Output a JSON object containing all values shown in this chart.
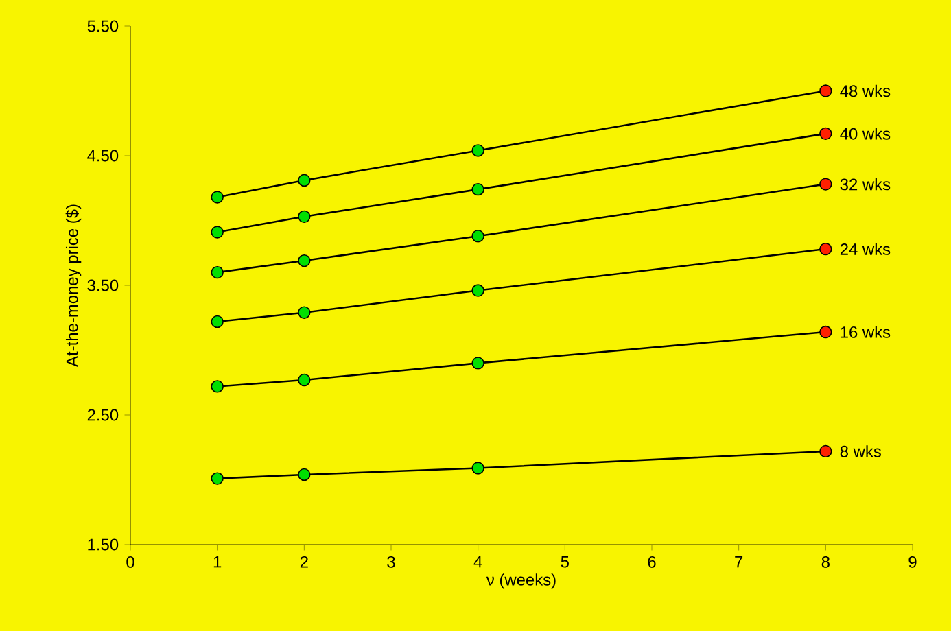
{
  "chart_data": {
    "type": "line",
    "xlabel": "ν (weeks)",
    "ylabel": "At-the-money price ($)",
    "xlim": [
      0,
      9
    ],
    "xticks": [
      0,
      1,
      2,
      3,
      4,
      5,
      6,
      7,
      8,
      9
    ],
    "ylim": [
      1.5,
      5.5
    ],
    "yticks": [
      {
        "value": 1.5,
        "label": "1.50"
      },
      {
        "value": 2.5,
        "label": "2.50"
      },
      {
        "value": 3.5,
        "label": "3.50"
      },
      {
        "value": 4.5,
        "label": "4.50"
      },
      {
        "value": 5.5,
        "label": "5.50"
      }
    ],
    "marker": "circle",
    "legend": false,
    "grid": false,
    "x": [
      1,
      2,
      4,
      8
    ],
    "series": [
      {
        "name": "48 wks",
        "color": "#000000",
        "colors": [
          "#00e000",
          "#00e000",
          "#00e000",
          "#ff2000"
        ],
        "values": [
          4.18,
          4.31,
          4.54,
          5.0
        ]
      },
      {
        "name": "40 wks",
        "color": "#000000",
        "colors": [
          "#00e000",
          "#00e000",
          "#00e000",
          "#ff2000"
        ],
        "values": [
          3.91,
          4.03,
          4.24,
          4.67
        ]
      },
      {
        "name": "32 wks",
        "color": "#000000",
        "colors": [
          "#00e000",
          "#00e000",
          "#00e000",
          "#ff2000"
        ],
        "values": [
          3.6,
          3.69,
          3.88,
          4.28
        ]
      },
      {
        "name": "24 wks",
        "color": "#000000",
        "colors": [
          "#00e000",
          "#00e000",
          "#00e000",
          "#ff2000"
        ],
        "values": [
          3.22,
          3.29,
          3.46,
          3.78
        ]
      },
      {
        "name": "16 wks",
        "color": "#000000",
        "colors": [
          "#00e000",
          "#00e000",
          "#00e000",
          "#ff2000"
        ],
        "values": [
          2.72,
          2.77,
          2.9,
          3.14
        ]
      },
      {
        "name": "8 wks",
        "color": "#000000",
        "colors": [
          "#00e000",
          "#00e000",
          "#00e000",
          "#ff2000"
        ],
        "values": [
          2.01,
          2.04,
          2.09,
          2.22
        ]
      }
    ]
  }
}
